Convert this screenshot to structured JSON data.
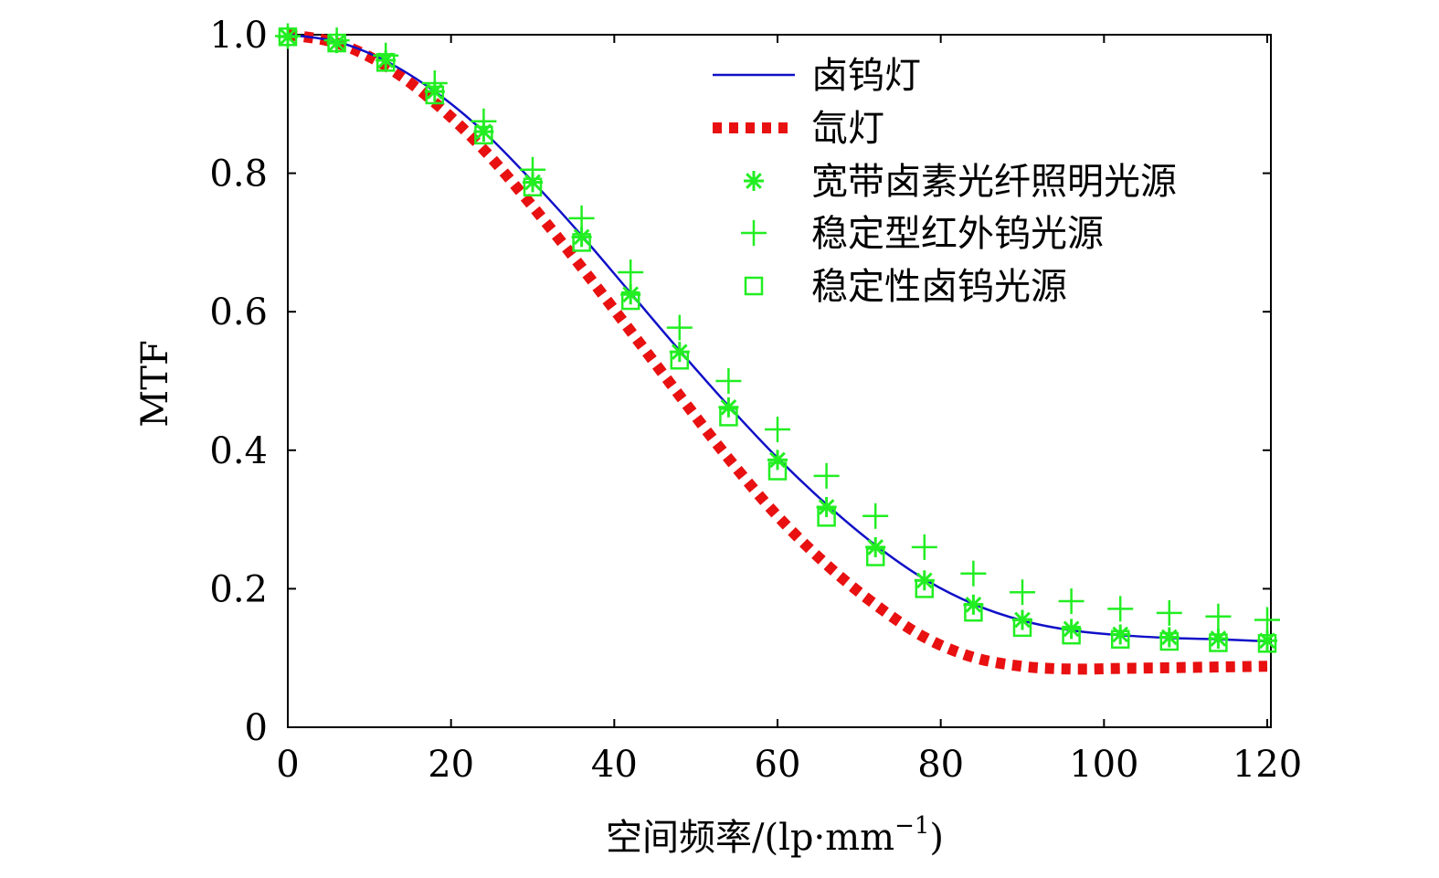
{
  "chart_data": {
    "type": "line",
    "xlabel": "空间频率/(lp·mm",
    "xlabel_sup": "−1",
    "xlabel_end": ")",
    "ylabel": "MTF",
    "xlim": [
      0,
      120
    ],
    "ylim": [
      0,
      1.0
    ],
    "xticks": [
      0,
      20,
      40,
      60,
      80,
      100,
      120
    ],
    "xtick_labels": [
      "0",
      "20",
      "40",
      "60",
      "80",
      "100",
      "120"
    ],
    "yticks": [
      0,
      0.2,
      0.4,
      0.6,
      0.8,
      1.0
    ],
    "ytick_labels": [
      "0",
      "0.2",
      "0.4",
      "0.6",
      "0.8",
      "1.0"
    ],
    "legend_position": "top-right",
    "series": [
      {
        "name": "卤钨灯",
        "style": "line",
        "color": "#1010c8",
        "x": [
          0,
          6,
          12,
          18,
          24,
          30,
          36,
          42,
          48,
          54,
          60,
          66,
          72,
          78,
          84,
          90,
          96,
          102,
          108,
          114,
          120
        ],
        "values": [
          1.0,
          0.99,
          0.962,
          0.918,
          0.86,
          0.788,
          0.71,
          0.627,
          0.544,
          0.464,
          0.389,
          0.322,
          0.263,
          0.214,
          0.178,
          0.154,
          0.14,
          0.133,
          0.129,
          0.127,
          0.124
        ]
      },
      {
        "name": "氙灯",
        "style": "dotted",
        "color": "#e81010",
        "x": [
          0,
          6,
          12,
          18,
          24,
          30,
          36,
          42,
          48,
          54,
          60,
          66,
          72,
          78,
          84,
          90,
          96,
          102,
          108,
          114,
          120
        ],
        "values": [
          1.0,
          0.988,
          0.955,
          0.902,
          0.834,
          0.752,
          0.664,
          0.572,
          0.479,
          0.388,
          0.305,
          0.235,
          0.177,
          0.13,
          0.101,
          0.088,
          0.084,
          0.085,
          0.086,
          0.087,
          0.088
        ]
      },
      {
        "name": "宽带卤素光纤照明光源",
        "style": "star",
        "color": "#22ee22",
        "x": [
          0,
          6,
          12,
          18,
          24,
          30,
          36,
          42,
          48,
          54,
          60,
          66,
          72,
          78,
          84,
          90,
          96,
          102,
          108,
          114,
          120
        ],
        "values": [
          0.997,
          0.988,
          0.963,
          0.918,
          0.86,
          0.787,
          0.708,
          0.625,
          0.542,
          0.462,
          0.386,
          0.318,
          0.26,
          0.212,
          0.177,
          0.155,
          0.142,
          0.134,
          0.13,
          0.128,
          0.125
        ]
      },
      {
        "name": "稳定型红外钨光源",
        "style": "plus",
        "color": "#22ee22",
        "x": [
          0,
          6,
          12,
          18,
          24,
          30,
          36,
          42,
          48,
          54,
          60,
          66,
          72,
          78,
          84,
          90,
          96,
          102,
          108,
          114,
          120
        ],
        "values": [
          0.998,
          0.992,
          0.97,
          0.93,
          0.875,
          0.805,
          0.735,
          0.657,
          0.577,
          0.5,
          0.43,
          0.363,
          0.305,
          0.26,
          0.222,
          0.195,
          0.182,
          0.171,
          0.165,
          0.16,
          0.155
        ]
      },
      {
        "name": "稳定性卤钨光源",
        "style": "square",
        "color": "#22ee22",
        "x": [
          0,
          6,
          12,
          18,
          24,
          30,
          36,
          42,
          48,
          54,
          60,
          66,
          72,
          78,
          84,
          90,
          96,
          102,
          108,
          114,
          120
        ],
        "values": [
          0.997,
          0.988,
          0.96,
          0.913,
          0.855,
          0.78,
          0.7,
          0.616,
          0.53,
          0.448,
          0.37,
          0.303,
          0.246,
          0.2,
          0.166,
          0.144,
          0.133,
          0.127,
          0.124,
          0.122,
          0.121
        ]
      }
    ]
  }
}
